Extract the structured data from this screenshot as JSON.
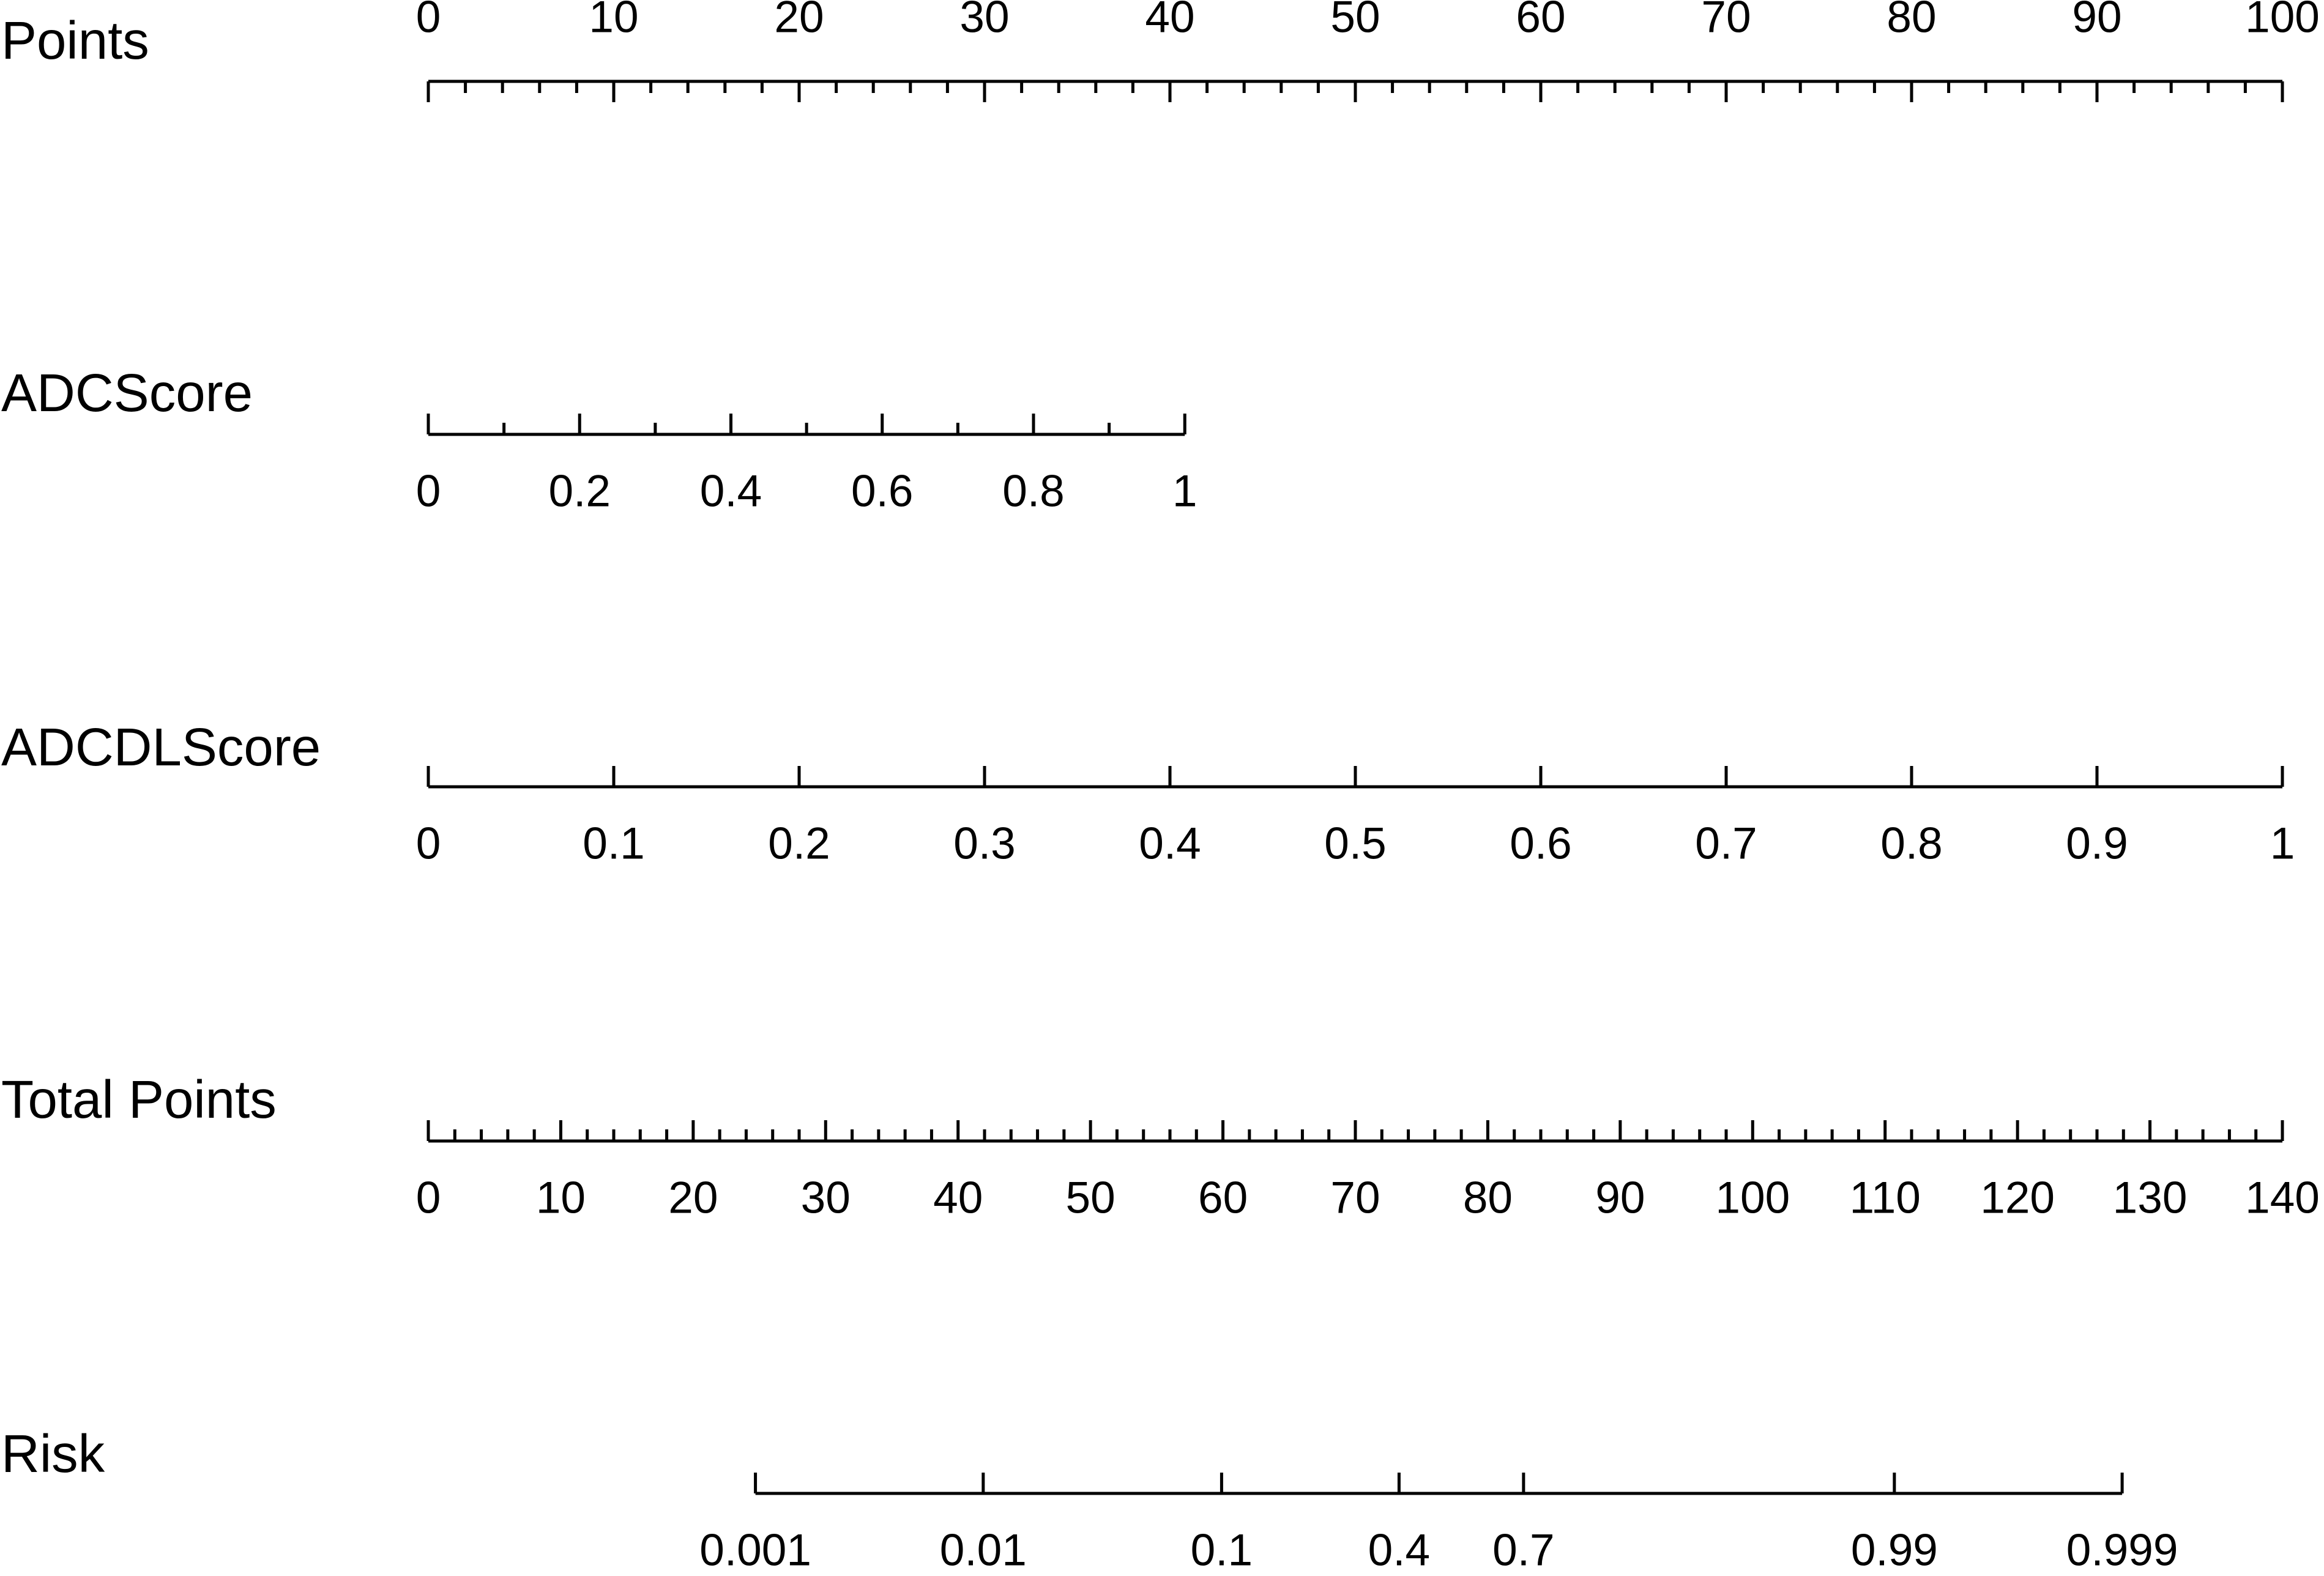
{
  "chart_data": {
    "type": "nomogram",
    "scales": [
      {
        "name": "Points",
        "xlim": [
          0,
          100
        ],
        "ticks": [
          0,
          10,
          20,
          30,
          40,
          50,
          60,
          70,
          80,
          90,
          100
        ],
        "minor_ticks": [
          2,
          4,
          6,
          8,
          12,
          14,
          16,
          18,
          22,
          24,
          26,
          28,
          32,
          34,
          36,
          38,
          42,
          44,
          46,
          48,
          52,
          54,
          56,
          58,
          62,
          64,
          66,
          68,
          72,
          74,
          76,
          78,
          82,
          84,
          86,
          88,
          92,
          94,
          96,
          98
        ]
      },
      {
        "name": "ADCScore",
        "xlim": [
          0,
          1
        ],
        "points_lim": [
          0,
          40.8
        ],
        "ticks": [
          0,
          0.2,
          0.4,
          0.6,
          0.8,
          1
        ],
        "minor_ticks": [
          0.1,
          0.3,
          0.5,
          0.7,
          0.9
        ]
      },
      {
        "name": "ADCDLScore",
        "xlim": [
          0,
          1
        ],
        "points_lim": [
          0,
          100
        ],
        "ticks": [
          0,
          0.1,
          0.2,
          0.3,
          0.4,
          0.5,
          0.6,
          0.7,
          0.8,
          0.9,
          1
        ],
        "minor_ticks": []
      },
      {
        "name": "Total Points",
        "xlim": [
          0,
          140
        ],
        "ticks": [
          0,
          10,
          20,
          30,
          40,
          50,
          60,
          70,
          80,
          90,
          100,
          110,
          120,
          130,
          140
        ],
        "minor_ticks": [
          2,
          4,
          6,
          8,
          12,
          14,
          16,
          18,
          22,
          24,
          26,
          28,
          32,
          34,
          36,
          38,
          42,
          44,
          46,
          48,
          52,
          54,
          56,
          58,
          62,
          64,
          66,
          68,
          72,
          74,
          76,
          78,
          82,
          84,
          86,
          88,
          92,
          94,
          96,
          98,
          102,
          104,
          106,
          108,
          112,
          114,
          116,
          118,
          122,
          124,
          126,
          128,
          132,
          134,
          136,
          138
        ]
      },
      {
        "name": "Risk",
        "ticks": [
          0.001,
          0.01,
          0.1,
          0.4,
          0.7,
          0.99,
          0.999
        ],
        "tick_points": [
          24.7,
          41.9,
          59.9,
          73.3,
          82.7,
          110.7,
          127.9
        ]
      }
    ]
  }
}
